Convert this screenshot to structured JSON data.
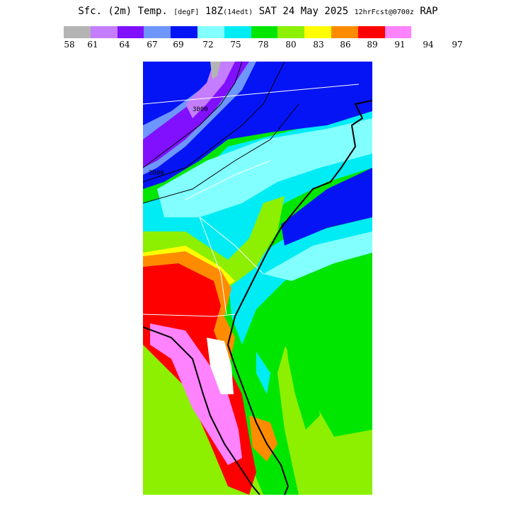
{
  "title": {
    "main": "Sfc. (2m) Temp.",
    "units": "[degF]",
    "valid": "18Z",
    "local": "(14edt)",
    "date": "SAT 24 May 2025",
    "forecast": "12hrFcst@0700z",
    "model": "RAP"
  },
  "legend": {
    "colors": [
      "#b4b4b4",
      "#c47dff",
      "#8010ff",
      "#6e96ff",
      "#0514f5",
      "#82ffff",
      "#00ecf5",
      "#00e600",
      "#8cf000",
      "#ffff00",
      "#ff8c00",
      "#ff0000",
      "#ff82ff"
    ],
    "ticks": [
      "58",
      "61",
      "64",
      "67",
      "69",
      "72",
      "75",
      "78",
      "80",
      "83",
      "86",
      "89",
      "91",
      "94",
      "97"
    ]
  },
  "contour_labels": [
    "2000",
    "3000"
  ],
  "colors": {
    "background": "#ffffff",
    "state_lines": "#ffffff",
    "coastline": "#000000",
    "contours": "#000000"
  }
}
